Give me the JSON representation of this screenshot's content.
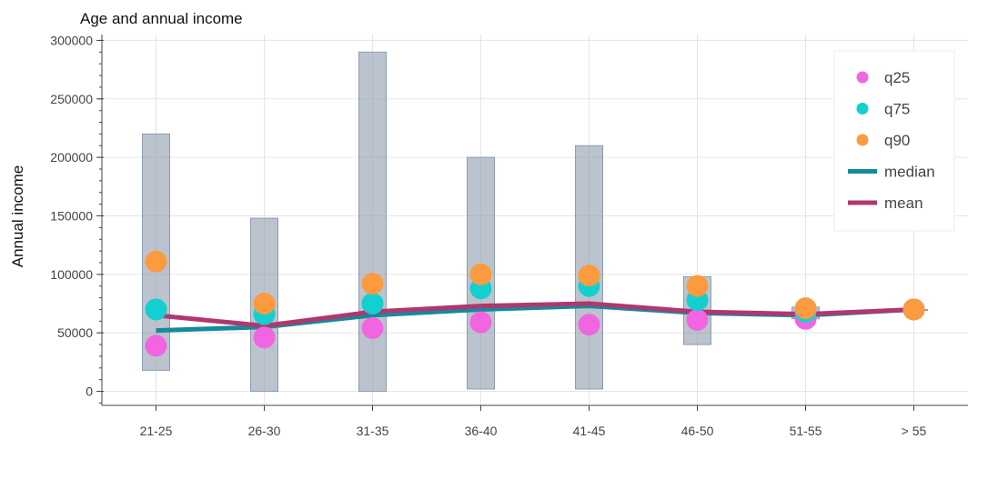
{
  "chart_data": {
    "type": "bar",
    "title": "Age and annual income",
    "xlabel": "",
    "ylabel": "Annual income",
    "categories": [
      "21-25",
      "26-30",
      "31-35",
      "36-40",
      "41-45",
      "46-50",
      "51-55",
      "> 55"
    ],
    "ylim": [
      -12000,
      305000
    ],
    "yticks": [
      0,
      50000,
      100000,
      150000,
      200000,
      250000,
      300000
    ],
    "ytick_labels": [
      "0",
      "50000",
      "100000",
      "150000",
      "200000",
      "250000",
      "300000"
    ],
    "grid": true,
    "legend_position": "top-right",
    "range_bars": {
      "color": "#8e9cae",
      "low": [
        18000,
        0,
        0,
        2000,
        2000,
        40000,
        62000,
        70000
      ],
      "high": [
        220000,
        148000,
        290000,
        200000,
        210000,
        98000,
        72000,
        70000
      ]
    },
    "series": [
      {
        "name": "q25",
        "type": "scatter",
        "color": "#f165e0",
        "values": [
          39000,
          46000,
          54000,
          59000,
          57000,
          61000,
          62000,
          70000
        ]
      },
      {
        "name": "q75",
        "type": "scatter",
        "color": "#14cfcf",
        "values": [
          70000,
          66000,
          75000,
          88000,
          90000,
          78000,
          68000,
          70000
        ]
      },
      {
        "name": "q90",
        "type": "scatter",
        "color": "#fb9a3e",
        "values": [
          111000,
          75000,
          92000,
          100000,
          99000,
          90000,
          71000,
          70000
        ]
      },
      {
        "name": "median",
        "type": "line",
        "color": "#148a9c",
        "values": [
          52000,
          55000,
          65000,
          70000,
          73000,
          67000,
          65000,
          70000
        ]
      },
      {
        "name": "mean",
        "type": "line",
        "color": "#b0376f",
        "values": [
          65000,
          56000,
          68000,
          73000,
          75000,
          68000,
          66000,
          70000
        ]
      }
    ]
  }
}
